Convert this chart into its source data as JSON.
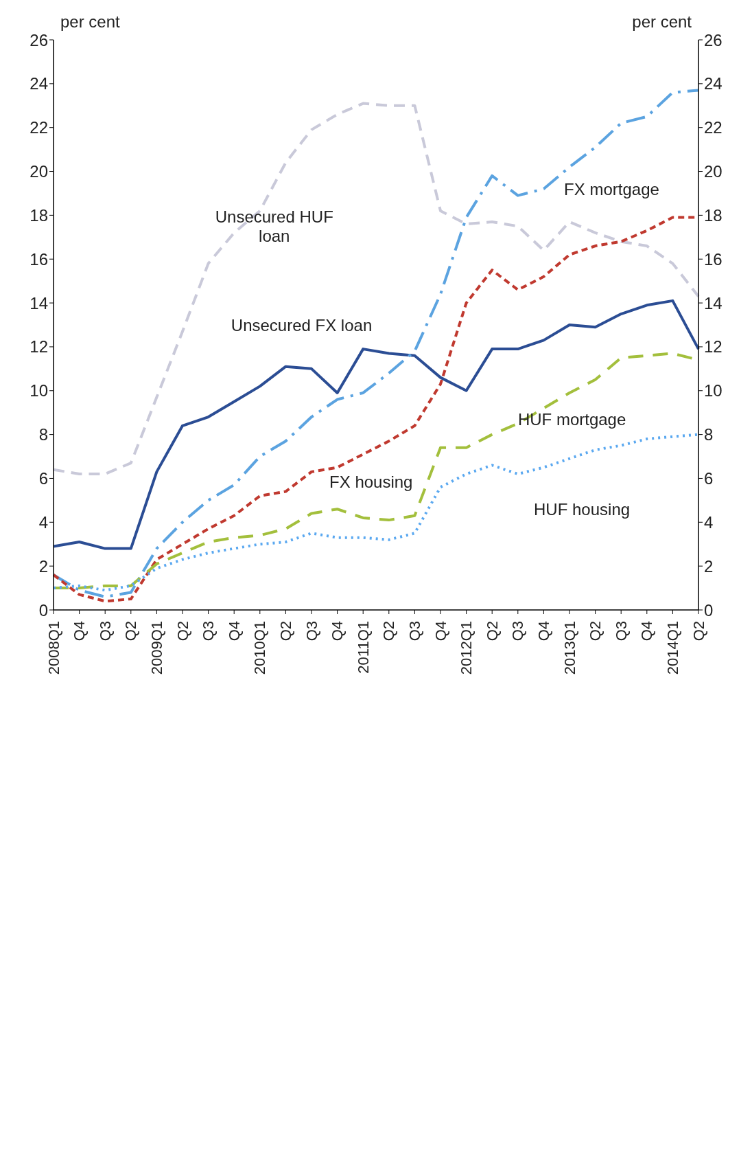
{
  "chart_data": {
    "type": "line",
    "ylabel": "per cent",
    "y2label": "per cent",
    "categories": [
      "2008Q1",
      "Q4",
      "Q3",
      "Q2",
      "2009Q1",
      "Q2",
      "Q3",
      "Q4",
      "2010Q1",
      "Q2",
      "Q3",
      "Q4",
      "2011Q1",
      "Q2",
      "Q3",
      "Q4",
      "2012Q1",
      "Q2",
      "Q3",
      "Q4",
      "2013Q1",
      "Q2",
      "Q3",
      "Q4",
      "2014Q1",
      "Q2"
    ],
    "ylim": [
      0,
      26
    ],
    "yticks": [
      0,
      2,
      4,
      6,
      8,
      10,
      12,
      14,
      16,
      18,
      20,
      22,
      24,
      26
    ],
    "y2lim": [
      0,
      26
    ],
    "y2ticks": [
      0,
      2,
      4,
      6,
      8,
      10,
      12,
      14,
      16,
      18,
      20,
      22,
      24,
      26
    ],
    "series": [
      {
        "name": "Unsecured HUF loan",
        "color": "#c9c9d9",
        "line_style": "dashed",
        "values": [
          6.4,
          6.2,
          6.2,
          6.7,
          9.7,
          12.7,
          15.8,
          17.2,
          18.2,
          20.4,
          21.9,
          22.6,
          23.1,
          23.0,
          23.0,
          18.2,
          17.6,
          17.7,
          17.5,
          16.4,
          17.7,
          17.2,
          16.8,
          16.6,
          15.8,
          14.3
        ]
      },
      {
        "name": "Unsecured FX loan",
        "color": "#2b4d94",
        "line_style": "solid",
        "values": [
          2.9,
          3.1,
          2.8,
          2.8,
          6.3,
          8.4,
          8.8,
          9.5,
          10.2,
          11.1,
          11.0,
          9.9,
          11.9,
          11.7,
          11.6,
          10.6,
          10.0,
          11.9,
          11.9,
          12.3,
          13.0,
          12.9,
          13.5,
          13.9,
          14.1,
          11.9
        ]
      },
      {
        "name": "FX mortgage",
        "color": "#5ba3e0",
        "line_style": "dashed",
        "values": [
          1.6,
          0.9,
          0.6,
          0.8,
          2.8,
          4.0,
          5.0,
          5.7,
          7.0,
          7.7,
          8.8,
          9.6,
          9.9,
          10.8,
          11.8,
          14.4,
          17.9,
          19.8,
          18.9,
          19.2,
          20.2,
          21.1,
          22.2,
          22.5,
          23.6,
          23.7
        ]
      },
      {
        "name": "FX housing",
        "color": "#c0392f",
        "line_style": "dashed",
        "values": [
          1.6,
          0.7,
          0.4,
          0.5,
          2.3,
          3.0,
          3.7,
          4.3,
          5.2,
          5.4,
          6.3,
          6.5,
          7.1,
          7.7,
          8.4,
          10.3,
          14.0,
          15.5,
          14.6,
          15.2,
          16.2,
          16.6,
          16.8,
          17.3,
          17.9,
          17.9
        ]
      },
      {
        "name": "HUF mortgage",
        "color": "#a3bf3c",
        "line_style": "dashed",
        "values": [
          1.0,
          1.0,
          1.1,
          1.1,
          2.1,
          2.6,
          3.1,
          3.3,
          3.4,
          3.7,
          4.4,
          4.6,
          4.2,
          4.1,
          4.3,
          7.4,
          7.4,
          8.0,
          8.5,
          9.2,
          9.9,
          10.5,
          11.5,
          11.6,
          11.7,
          11.4
        ]
      },
      {
        "name": "HUF housing",
        "color": "#5aa8f0",
        "line_style": "dotted",
        "values": [
          1.0,
          1.1,
          0.9,
          1.1,
          1.9,
          2.3,
          2.6,
          2.8,
          3.0,
          3.1,
          3.5,
          3.3,
          3.3,
          3.2,
          3.5,
          5.6,
          6.2,
          6.6,
          6.2,
          6.5,
          6.9,
          7.3,
          7.5,
          7.8,
          7.9,
          8.0
        ]
      }
    ]
  }
}
